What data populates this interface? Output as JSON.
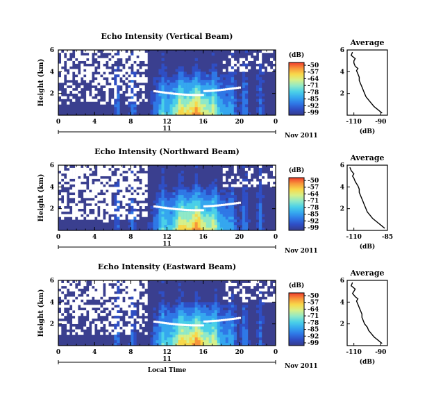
{
  "figure": {
    "date_label": "Nov 2011",
    "x_axis_title": "Local Time",
    "day_label": "11",
    "colorbar_unit": "(dB)",
    "profile_unit": "(dB)",
    "profile_title": "Average"
  },
  "colors": {
    "colormap": [
      "#353b8a",
      "#2f4ec4",
      "#2f78e6",
      "#35a7ef",
      "#4ad0e8",
      "#8fe9c8",
      "#d6f08a",
      "#f8d94a",
      "#f8963a",
      "#ef3b2c"
    ],
    "background_fill": "#3a3f8f",
    "profile_line": "#000000"
  },
  "chart_data": [
    {
      "type": "heatmap",
      "title": "Echo Intensity (Vertical Beam)",
      "ylabel": "Height (km)",
      "xlabel": "",
      "x_ticks": [
        "0",
        "4",
        "8",
        "12",
        "16",
        "20",
        "0"
      ],
      "x_range_hours": [
        0,
        24
      ],
      "y_ticks": [
        "2",
        "4",
        "6"
      ],
      "ylim": [
        0,
        6
      ],
      "colorbar_ticks": [
        "-50",
        "-57",
        "-64",
        "-71",
        "-78",
        "-85",
        "-92",
        "-99"
      ],
      "colorbar_range_db": [
        -99,
        -50
      ]
    },
    {
      "type": "line",
      "title": "Average",
      "xlabel": "(dB)",
      "x_ticks": [
        "-110",
        "-90"
      ],
      "xlim": [
        -115,
        -85
      ],
      "y_ticks": [
        "2",
        "4",
        "6"
      ],
      "ylim": [
        0,
        6
      ],
      "x": [
        -89,
        -92,
        -95,
        -97,
        -99,
        -101,
        -102,
        -103,
        -104,
        -105,
        -106,
        -106,
        -107,
        -108,
        -107,
        -109,
        -110,
        -110,
        -109,
        -112,
        -111
      ],
      "y": [
        0.2,
        0.5,
        0.8,
        1.1,
        1.4,
        1.7,
        2.0,
        2.3,
        2.6,
        2.9,
        3.2,
        3.5,
        3.8,
        4.1,
        4.3,
        4.5,
        4.8,
        5.0,
        5.2,
        5.5,
        5.8
      ]
    },
    {
      "type": "heatmap",
      "title": "Echo Intensity (Northward Beam)",
      "ylabel": "Height (km)",
      "xlabel": "",
      "x_ticks": [
        "0",
        "4",
        "8",
        "12",
        "16",
        "20",
        "0"
      ],
      "x_range_hours": [
        0,
        24
      ],
      "y_ticks": [
        "2",
        "4",
        "6"
      ],
      "ylim": [
        0,
        6
      ],
      "colorbar_ticks": [
        "-50",
        "-57",
        "-64",
        "-71",
        "-78",
        "-85",
        "-92",
        "-99"
      ],
      "colorbar_range_db": [
        -99,
        -50
      ]
    },
    {
      "type": "line",
      "title": "Average",
      "xlabel": "(dB)",
      "x_ticks": [
        "-110",
        "-85"
      ],
      "xlim": [
        -115,
        -85
      ],
      "y_ticks": [
        "2",
        "4",
        "6"
      ],
      "ylim": [
        0,
        6
      ],
      "x": [
        -87,
        -90,
        -93,
        -96,
        -98,
        -100,
        -101,
        -102,
        -103,
        -104,
        -105,
        -106,
        -106,
        -107,
        -108,
        -109,
        -110,
        -111,
        -110,
        -112,
        -113
      ],
      "y": [
        0.2,
        0.5,
        0.8,
        1.1,
        1.4,
        1.7,
        2.0,
        2.3,
        2.6,
        2.9,
        3.2,
        3.5,
        3.8,
        4.1,
        4.3,
        4.5,
        4.8,
        5.0,
        5.2,
        5.5,
        5.8
      ]
    },
    {
      "type": "heatmap",
      "title": "Echo Intensity (Eastward Beam)",
      "ylabel": "Height (km)",
      "xlabel": "Local Time",
      "x_ticks": [
        "0",
        "4",
        "8",
        "12",
        "16",
        "20",
        "0"
      ],
      "x_range_hours": [
        0,
        24
      ],
      "y_ticks": [
        "2",
        "4",
        "6"
      ],
      "ylim": [
        0,
        6
      ],
      "colorbar_ticks": [
        "-50",
        "-57",
        "-64",
        "-71",
        "-78",
        "-85",
        "-92",
        "-99"
      ],
      "colorbar_range_db": [
        -99,
        -50
      ]
    },
    {
      "type": "line",
      "title": "Average",
      "xlabel": "(dB)",
      "x_ticks": [
        "-110",
        "-90"
      ],
      "xlim": [
        -115,
        -85
      ],
      "y_ticks": [
        "2",
        "4",
        "6"
      ],
      "ylim": [
        0,
        6
      ],
      "x": [
        -89,
        -92,
        -95,
        -97,
        -99,
        -100,
        -102,
        -103,
        -104,
        -104,
        -105,
        -106,
        -107,
        -108,
        -107,
        -109,
        -111,
        -110,
        -109,
        -112,
        -111
      ],
      "y": [
        0.2,
        0.5,
        0.8,
        1.1,
        1.4,
        1.7,
        2.0,
        2.3,
        2.6,
        2.9,
        3.2,
        3.5,
        3.8,
        4.1,
        4.3,
        4.5,
        4.8,
        5.0,
        5.2,
        5.5,
        5.8
      ]
    }
  ]
}
